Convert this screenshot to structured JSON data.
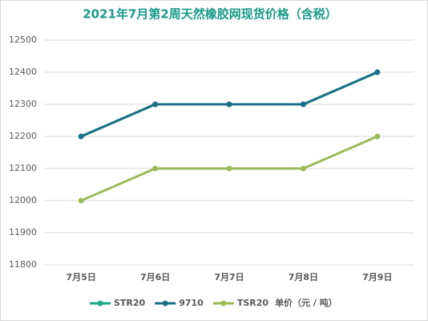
{
  "chart_data": {
    "type": "line",
    "title": "2021年7月第2周天然橡胶网现货价格（含税）",
    "categories": [
      "7月5日",
      "7月6日",
      "7月7日",
      "7月8日",
      "7月9日"
    ],
    "series": [
      {
        "name": "STR20",
        "color": "#1aaa8a",
        "values": [
          12200,
          12300,
          12300,
          12300,
          12400
        ]
      },
      {
        "name": "9710",
        "color": "#1b7088",
        "values": [
          12200,
          12300,
          12300,
          12300,
          12400
        ]
      },
      {
        "name": "TSR20",
        "color": "#9bbb59",
        "values": [
          12000,
          12100,
          12100,
          12100,
          12200
        ]
      }
    ],
    "unit_label": "单价（元 / 吨）",
    "ylim": [
      11800,
      12500
    ],
    "yticks": [
      11800,
      11900,
      12000,
      12100,
      12200,
      12300,
      12400,
      12500
    ],
    "grid": true
  }
}
